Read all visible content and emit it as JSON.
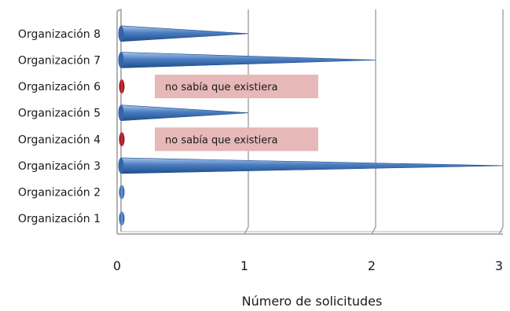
{
  "chart_data": {
    "type": "bar",
    "orientation": "horizontal",
    "categories": [
      "Organización 1",
      "Organización 2",
      "Organización 3",
      "Organización 4",
      "Organización 5",
      "Organización 6",
      "Organización 7",
      "Organización 8"
    ],
    "values": [
      0,
      0,
      3,
      0,
      1,
      0,
      2,
      1
    ],
    "title": "",
    "xlabel": "Número de solicitudes",
    "ylabel": "",
    "xlim": [
      0,
      3
    ],
    "xticks": [
      "0",
      "1",
      "2",
      "3"
    ],
    "grid": "vertical",
    "legend": "none",
    "annotations": [
      {
        "category": "Organización 6",
        "text": "no sabía que existiera"
      },
      {
        "category": "Organización 4",
        "text": "no sabía que existiera"
      }
    ],
    "colors": {
      "bar": "#4a7dc0",
      "bar_dark": "#1f4e8c",
      "bar_light": "#a9c6ee",
      "marker_red": "#c0202a",
      "annotation_bg": "#e6b8b7",
      "grid": "#9a9a9a"
    }
  }
}
